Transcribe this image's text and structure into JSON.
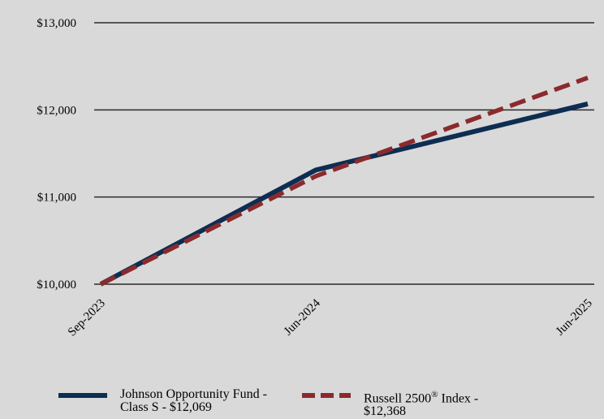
{
  "chart_data": {
    "type": "line",
    "x": [
      "Sep-2023",
      "Jun-2024",
      "Jun-2025"
    ],
    "y_ticks": [
      "$10,000",
      "$11,000",
      "$12,000",
      "$13,000"
    ],
    "ylim": [
      10000,
      13000
    ],
    "grid": true,
    "legend_position": "bottom",
    "series": [
      {
        "name": "Johnson Opportunity Fund - Class S - $12,069",
        "values": [
          10000,
          11310,
          12069
        ],
        "color": "#0d2d52",
        "style": "solid"
      },
      {
        "name": "Russell 2500® Index - $12,368",
        "values": [
          10000,
          11240,
          12368
        ],
        "color": "#8b2a2d",
        "style": "dashed"
      }
    ]
  },
  "legend": {
    "fund_label": "Johnson Opportunity Fund -\nClass S - $12,069",
    "index_label_before": "Russell 2500",
    "index_label_sup": "®",
    "index_label_after": " Index -\n$12,368"
  }
}
